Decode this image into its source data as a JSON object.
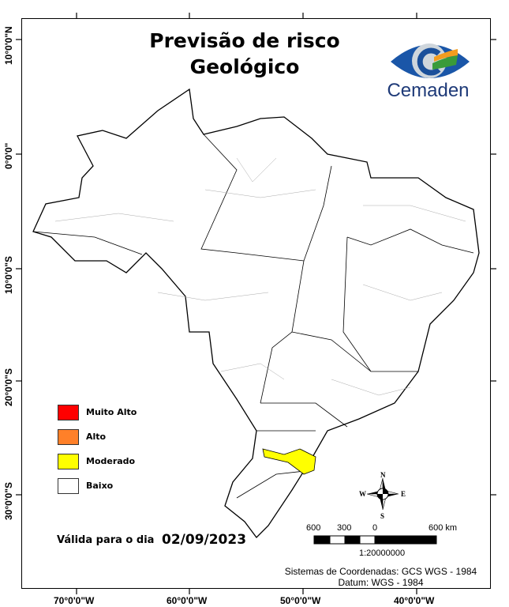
{
  "title": {
    "line1": "Previsão de risco",
    "line2": "Geológico"
  },
  "logo": {
    "text": "Cemaden"
  },
  "axes": {
    "longitude": [
      "70°0'0\"W",
      "60°0'0\"W",
      "50°0'0\"W",
      "40°0'0\"W"
    ],
    "latitude": [
      "10°0'0\"N",
      "0°0'0\"",
      "10°0'0\"S",
      "20°0'0\"S",
      "30°0'0\"S"
    ]
  },
  "legend": [
    {
      "label": "Muito Alto",
      "color": "#ff0000"
    },
    {
      "label": "Alto",
      "color": "#ff8029"
    },
    {
      "label": "Moderado",
      "color": "#ffff00"
    },
    {
      "label": "Baixo",
      "color": "#ffffff"
    }
  ],
  "validity": {
    "label": "Válida para o dia",
    "date": "02/09/2023"
  },
  "compass": {
    "n": "N",
    "s": "S",
    "e": "E",
    "w": "W"
  },
  "scale": {
    "ticks": [
      "600",
      "300",
      "0",
      "600 km"
    ],
    "ratio": "1:20000000"
  },
  "footer": {
    "crs": "Sistemas de Coordenadas: GCS WGS - 1984",
    "datum": "Datum: WGS - 1984"
  },
  "risk_regions": [
    {
      "level": "Moderado",
      "color": "#ffff00"
    }
  ]
}
